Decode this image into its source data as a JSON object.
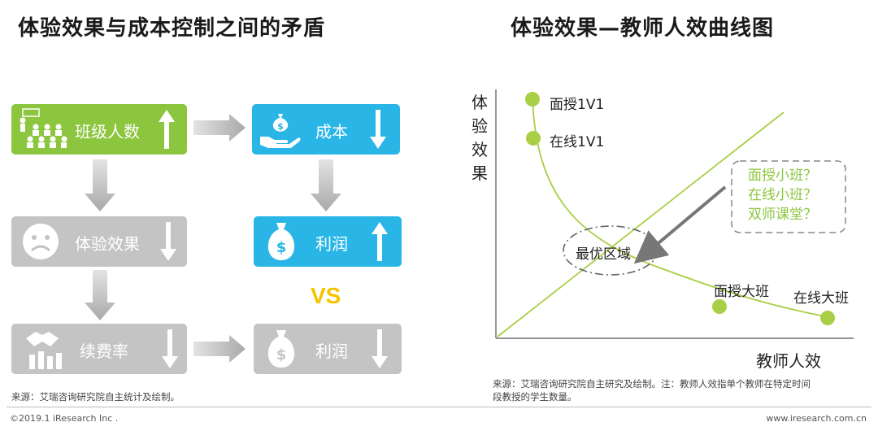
{
  "left": {
    "title": "体验效果与成本控制之间的矛盾",
    "boxes": {
      "class_size": "班级人数",
      "cost": "成本",
      "experience": "体验效果",
      "profit_up": "利润",
      "renewal": "续费率",
      "profit_down": "利润"
    },
    "vs": "VS",
    "source": "来源：艾瑞咨询研究院自主统计及绘制。",
    "colors": {
      "green": "#8cc63f",
      "blue": "#29b6e6",
      "grey": "#c4c4c4",
      "vs": "#f5c400"
    }
  },
  "right": {
    "title": "体验效果—教师人效曲线图",
    "y_axis_label": [
      "体",
      "验",
      "效",
      "果"
    ],
    "x_axis_label": "教师人效",
    "points": {
      "face_1v1": "面授1V1",
      "online_1v1": "在线1V1",
      "face_large": "面授大班",
      "online_large": "在线大班"
    },
    "optimal": "最优区域",
    "question_lines": [
      "面授小班？",
      "在线小班？",
      "双师课堂？"
    ],
    "source_lines": [
      "来源：艾瑞咨询研究院自主研究及绘制。注：教师人效指单个教师在特定时间",
      "段教授的学生数量。"
    ]
  },
  "footer": {
    "left": "©2019.1 iResearch Inc .",
    "right": "www.iresearch.com.cn"
  }
}
